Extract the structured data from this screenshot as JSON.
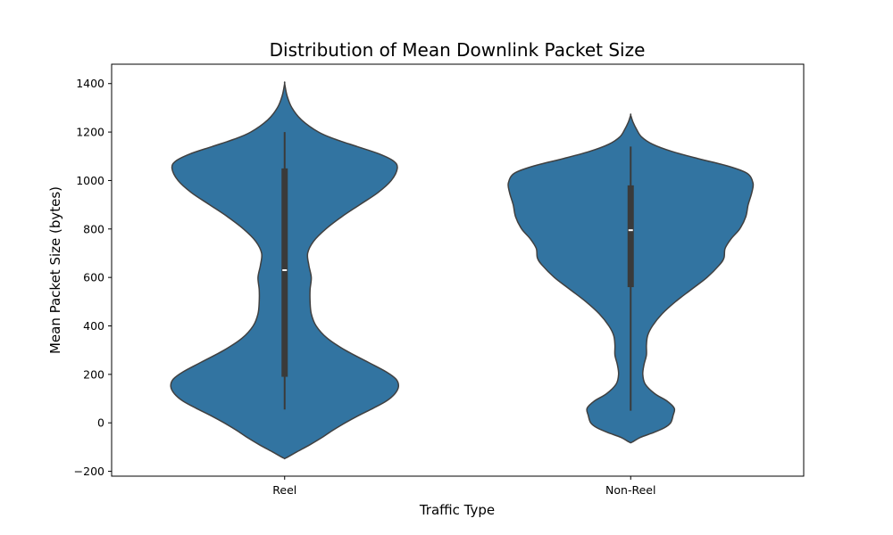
{
  "chart_data": {
    "type": "violin",
    "title": "Distribution of Mean Downlink Packet Size",
    "xlabel": "Traffic Type",
    "ylabel": "Mean Packet Size (bytes)",
    "ylim": [
      -220,
      1480
    ],
    "yticks": [
      -200,
      0,
      200,
      400,
      600,
      800,
      1000,
      1200,
      1400
    ],
    "grid": false,
    "categories": [
      "Reel",
      "Non-Reel"
    ],
    "color": "#3274a1",
    "edge_color": "#404040",
    "series": [
      {
        "category": "Reel",
        "density_profile": [
          [
            -145,
            0.01
          ],
          [
            -120,
            0.1
          ],
          [
            -90,
            0.21
          ],
          [
            -60,
            0.31
          ],
          [
            -30,
            0.4
          ],
          [
            0,
            0.5
          ],
          [
            30,
            0.61
          ],
          [
            60,
            0.73
          ],
          [
            90,
            0.84
          ],
          [
            120,
            0.91
          ],
          [
            150,
            0.94
          ],
          [
            180,
            0.92
          ],
          [
            210,
            0.84
          ],
          [
            250,
            0.69
          ],
          [
            300,
            0.5
          ],
          [
            350,
            0.35
          ],
          [
            400,
            0.26
          ],
          [
            450,
            0.22
          ],
          [
            500,
            0.21
          ],
          [
            550,
            0.21
          ],
          [
            600,
            0.22
          ],
          [
            650,
            0.2
          ],
          [
            700,
            0.19
          ],
          [
            750,
            0.24
          ],
          [
            800,
            0.34
          ],
          [
            850,
            0.47
          ],
          [
            900,
            0.62
          ],
          [
            950,
            0.77
          ],
          [
            1000,
            0.88
          ],
          [
            1050,
            0.93
          ],
          [
            1080,
            0.9
          ],
          [
            1110,
            0.78
          ],
          [
            1140,
            0.6
          ],
          [
            1170,
            0.42
          ],
          [
            1200,
            0.28
          ],
          [
            1250,
            0.14
          ],
          [
            1300,
            0.06
          ],
          [
            1350,
            0.02
          ],
          [
            1400,
            0.0
          ]
        ],
        "whisker_low": 55,
        "q1": 190,
        "median": 630,
        "q3": 1050,
        "whisker_high": 1200
      },
      {
        "category": "Non-Reel",
        "density_profile": [
          [
            -80,
            0.01
          ],
          [
            -60,
            0.08
          ],
          [
            -40,
            0.19
          ],
          [
            -20,
            0.28
          ],
          [
            0,
            0.33
          ],
          [
            30,
            0.35
          ],
          [
            60,
            0.36
          ],
          [
            90,
            0.3
          ],
          [
            120,
            0.2
          ],
          [
            160,
            0.12
          ],
          [
            200,
            0.1
          ],
          [
            240,
            0.11
          ],
          [
            280,
            0.13
          ],
          [
            320,
            0.13
          ],
          [
            360,
            0.14
          ],
          [
            400,
            0.18
          ],
          [
            450,
            0.26
          ],
          [
            500,
            0.37
          ],
          [
            550,
            0.5
          ],
          [
            600,
            0.63
          ],
          [
            650,
            0.73
          ],
          [
            680,
            0.77
          ],
          [
            720,
            0.78
          ],
          [
            760,
            0.83
          ],
          [
            800,
            0.9
          ],
          [
            850,
            0.95
          ],
          [
            900,
            0.97
          ],
          [
            950,
            1.0
          ],
          [
            990,
            1.01
          ],
          [
            1030,
            0.96
          ],
          [
            1060,
            0.8
          ],
          [
            1090,
            0.56
          ],
          [
            1120,
            0.34
          ],
          [
            1150,
            0.18
          ],
          [
            1180,
            0.09
          ],
          [
            1210,
            0.05
          ],
          [
            1240,
            0.02
          ],
          [
            1270,
            0.0
          ]
        ],
        "whisker_low": 50,
        "q1": 560,
        "median": 795,
        "q3": 980,
        "whisker_high": 1140
      }
    ]
  }
}
